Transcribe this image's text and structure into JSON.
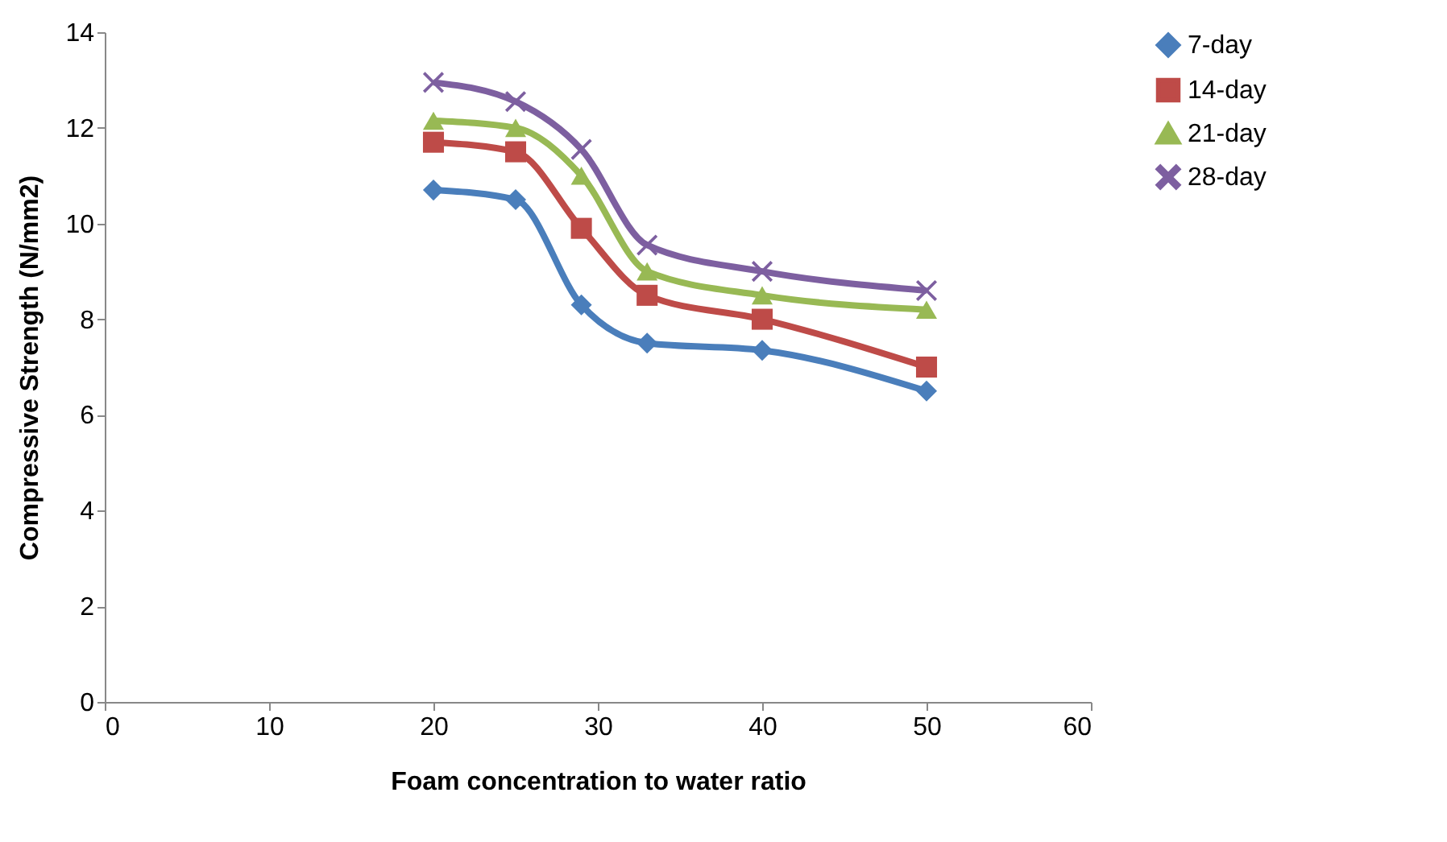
{
  "chart_data": {
    "type": "line",
    "xlabel": "Foam concentration to water ratio",
    "ylabel": "Compressive Strength (N/mm2)",
    "x": [
      20,
      25,
      29,
      33,
      40,
      50
    ],
    "series": [
      {
        "name": "7-day",
        "color": "#4a7ebb",
        "marker": "diamond",
        "values": [
          10.7,
          10.5,
          8.3,
          7.5,
          7.35,
          6.5
        ]
      },
      {
        "name": "14-day",
        "color": "#be4b48",
        "marker": "square",
        "values": [
          11.7,
          11.5,
          9.9,
          8.5,
          8.0,
          7.0
        ]
      },
      {
        "name": "21-day",
        "color": "#98b954",
        "marker": "triangle",
        "values": [
          12.15,
          12.0,
          11.0,
          9.0,
          8.5,
          8.2
        ]
      },
      {
        "name": "28-day",
        "color": "#7d5fa0",
        "marker": "cross",
        "values": [
          12.95,
          12.55,
          11.55,
          9.55,
          9.0,
          8.6
        ]
      }
    ],
    "xlim": [
      0,
      60
    ],
    "xticks": [
      0,
      10,
      20,
      30,
      40,
      50,
      60
    ],
    "ylim": [
      0,
      14
    ],
    "yticks": [
      0,
      2,
      4,
      6,
      8,
      10,
      12,
      14
    ],
    "grid": false,
    "legend": "right"
  }
}
